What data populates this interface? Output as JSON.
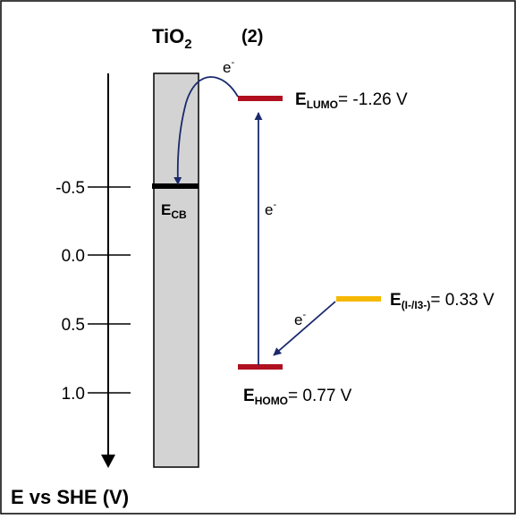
{
  "title": {
    "main": "TiO",
    "sub": "2"
  },
  "label_number": "(2)",
  "axis": {
    "title": "E vs SHE (V)",
    "ticks": [
      "-0.5",
      "0.0",
      "0.5",
      "1.0"
    ]
  },
  "conduction_band": {
    "main": "E",
    "sub": "CB"
  },
  "lumo": {
    "main": "E",
    "sub": "LUMO",
    "value": "= -1.26 V"
  },
  "homo": {
    "main": "E",
    "sub": "HOMO",
    "value": "= 0.77 V"
  },
  "redox": {
    "main": "E",
    "sub": "(I-/I3-)",
    "value": "= 0.33 V"
  },
  "electron_labels": {
    "top": {
      "main": "e",
      "sup": "-"
    },
    "middle": {
      "main": "e",
      "sup": "-"
    },
    "redox": {
      "main": "e",
      "sup": "-"
    }
  },
  "colors": {
    "level_red": "#b01020",
    "level_yellow": "#f5b800",
    "arrow_blue": "#1a2a6c",
    "tio2_fill": "#d3d3d3",
    "cb_line": "#000000"
  }
}
